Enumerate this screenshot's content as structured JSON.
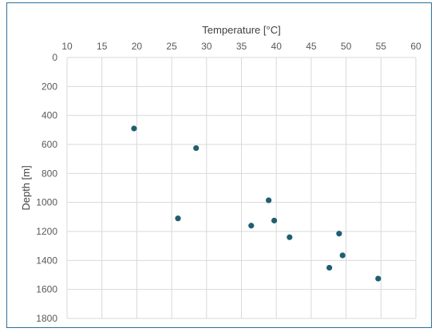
{
  "chart_data": {
    "type": "scatter",
    "title": "",
    "xlabel": "Temperature [°C]",
    "ylabel": "Depth [m]",
    "x_axis_position": "top",
    "y_axis_inverted": true,
    "xlim": [
      10,
      60
    ],
    "ylim": [
      0,
      1800
    ],
    "x_ticks": [
      10,
      15,
      20,
      25,
      30,
      35,
      40,
      45,
      50,
      55,
      60
    ],
    "y_ticks": [
      0,
      200,
      400,
      600,
      800,
      1000,
      1200,
      1400,
      1600,
      1800
    ],
    "grid": true,
    "legend": "none",
    "marker_color": "#1f5f6f",
    "points": [
      {
        "x": 19.6,
        "y": 490
      },
      {
        "x": 28.5,
        "y": 625
      },
      {
        "x": 25.9,
        "y": 1110
      },
      {
        "x": 38.9,
        "y": 985
      },
      {
        "x": 39.7,
        "y": 1125
      },
      {
        "x": 36.4,
        "y": 1160
      },
      {
        "x": 41.9,
        "y": 1240
      },
      {
        "x": 49.0,
        "y": 1215
      },
      {
        "x": 49.5,
        "y": 1365
      },
      {
        "x": 47.6,
        "y": 1450
      },
      {
        "x": 54.6,
        "y": 1525
      }
    ]
  }
}
